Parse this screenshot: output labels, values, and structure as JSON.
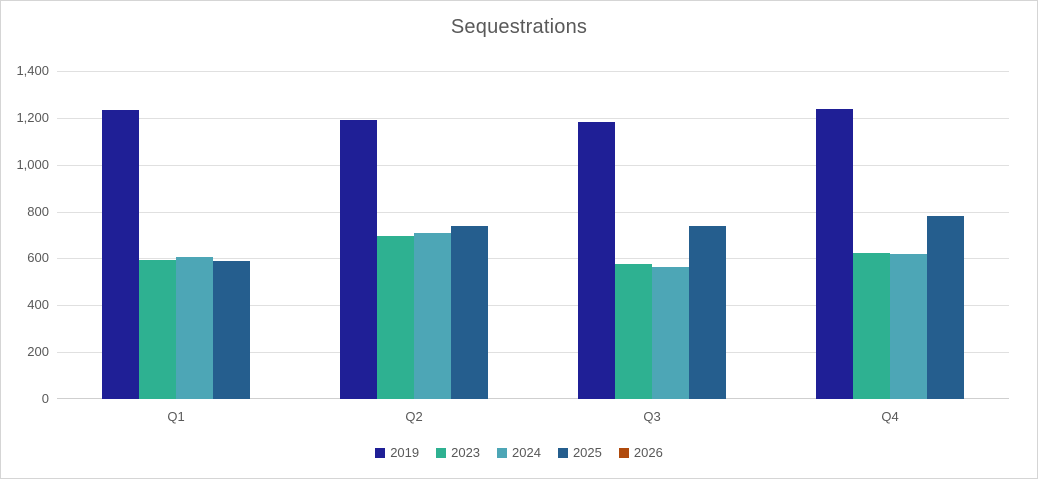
{
  "chart_data": {
    "type": "bar",
    "title": "Sequestrations",
    "categories": [
      "Q1",
      "Q2",
      "Q3",
      "Q4"
    ],
    "series": [
      {
        "name": "2019",
        "color": "#1F1F96",
        "values": [
          1232,
          1193,
          1184,
          1238
        ]
      },
      {
        "name": "2023",
        "color": "#2EB191",
        "values": [
          592,
          695,
          578,
          622
        ]
      },
      {
        "name": "2024",
        "color": "#4DA6B6",
        "values": [
          605,
          708,
          565,
          618
        ]
      },
      {
        "name": "2025",
        "color": "#255E8E",
        "values": [
          591,
          740,
          738,
          780
        ]
      },
      {
        "name": "2026",
        "color": "#B04A0C",
        "values": [
          null,
          null,
          null,
          null
        ]
      }
    ],
    "xlabel": "",
    "ylabel": "",
    "ylim": [
      0,
      1400
    ],
    "yticks": [
      {
        "value": 0,
        "label": "0"
      },
      {
        "value": 200,
        "label": "200"
      },
      {
        "value": 400,
        "label": "400"
      },
      {
        "value": 600,
        "label": "600"
      },
      {
        "value": 800,
        "label": "800"
      },
      {
        "value": 1000,
        "label": "1,000"
      },
      {
        "value": 1200,
        "label": "1,200"
      },
      {
        "value": 1400,
        "label": "1,400"
      }
    ],
    "grid": true,
    "legend_position": "bottom",
    "text_color": "#595959",
    "gridline_color": "#E0E0E0"
  }
}
